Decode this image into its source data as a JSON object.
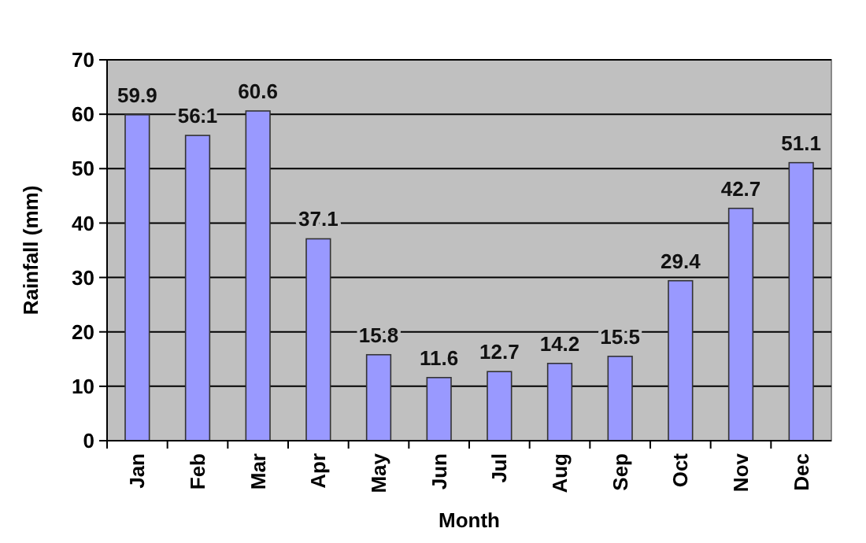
{
  "chart_data": {
    "type": "bar",
    "xlabel": "Month",
    "ylabel": "Rainfall (mm)",
    "categories": [
      "Jan",
      "Feb",
      "Mar",
      "Apr",
      "May",
      "Jun",
      "Jul",
      "Aug",
      "Sep",
      "Oct",
      "Nov",
      "Dec"
    ],
    "values": [
      59.9,
      56.1,
      60.6,
      37.1,
      15.8,
      11.6,
      12.7,
      14.2,
      15.5,
      29.4,
      42.7,
      51.1
    ],
    "color": "#9999ff",
    "ylim": [
      0,
      70
    ],
    "yticks": [
      0,
      10,
      20,
      30,
      40,
      50,
      60,
      70
    ],
    "grid": "y",
    "data_labels": true
  }
}
